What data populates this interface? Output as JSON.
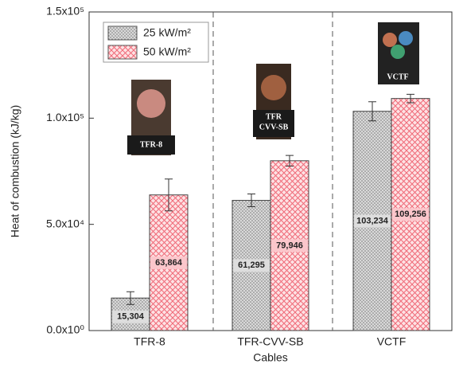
{
  "chart_data": {
    "type": "bar",
    "y_label": "Heat of combustion (kJ/kg)",
    "x_label": "Cables",
    "categories": [
      "TFR-8",
      "TFR-CVV-SB",
      "VCTF"
    ],
    "series": [
      {
        "name": "25 kW/m²",
        "color": "#c4c4c4",
        "values": [
          15304,
          61295,
          103234
        ],
        "errors": [
          3000,
          3000,
          4500
        ],
        "value_labels": [
          "15,304",
          "61,295",
          "103,234"
        ]
      },
      {
        "name": "50 kW/m²",
        "color": "#f08a94",
        "values": [
          63864,
          79946,
          109256
        ],
        "errors": [
          7500,
          2500,
          2000
        ],
        "value_labels": [
          "63,864",
          "79,946",
          "109,256"
        ]
      }
    ],
    "ylim": [
      0,
      150000
    ],
    "yticks": [
      {
        "value": 0,
        "label": "0.0x10⁰"
      },
      {
        "value": 50000,
        "label": "5.0x10⁴"
      },
      {
        "value": 100000,
        "label": "1.0x10⁵"
      },
      {
        "value": 150000,
        "label": "1.5x10⁵"
      }
    ],
    "image_labels": [
      [
        "TFR-8"
      ],
      [
        "TFR",
        "CVV-SB"
      ],
      [
        "VCTF"
      ]
    ]
  }
}
